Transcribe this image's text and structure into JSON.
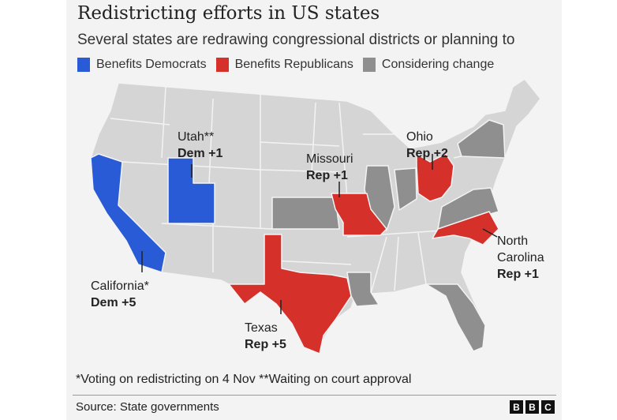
{
  "title": "Redistricting efforts in US states",
  "subtitle": "Several states are redrawing congressional districts or planning to",
  "legend": [
    {
      "label": "Benefits Democrats",
      "color": "#2a5bd7"
    },
    {
      "label": "Benefits Republicans",
      "color": "#d6302b"
    },
    {
      "label": "Considering change",
      "color": "#8f8f8f"
    }
  ],
  "colors": {
    "base": "#d5d5d5",
    "border": "#f3f3f3"
  },
  "states": {
    "utah": {
      "name": "Utah**",
      "effect": "Dem +1",
      "category": "Benefits Democrats"
    },
    "california": {
      "name": "California*",
      "effect": "Dem +5",
      "category": "Benefits Democrats"
    },
    "missouri": {
      "name": "Missouri",
      "effect": "Rep +1",
      "category": "Benefits Republicans"
    },
    "ohio": {
      "name": "Ohio",
      "effect": "Rep +2",
      "category": "Benefits Republicans"
    },
    "texas": {
      "name": "Texas",
      "effect": "Rep +5",
      "category": "Benefits Republicans"
    },
    "north_carolina": {
      "name_line1": "North",
      "name_line2": "Carolina",
      "effect": "Rep +1",
      "category": "Benefits Republicans"
    }
  },
  "considering": [
    "Kansas",
    "Illinois",
    "Indiana",
    "Virginia",
    "New York",
    "Florida",
    "Louisiana"
  ],
  "footnote": "*Voting on redistricting on 4 Nov **Waiting on court approval",
  "source": "Source: State governments",
  "logo": [
    "B",
    "B",
    "C"
  ]
}
